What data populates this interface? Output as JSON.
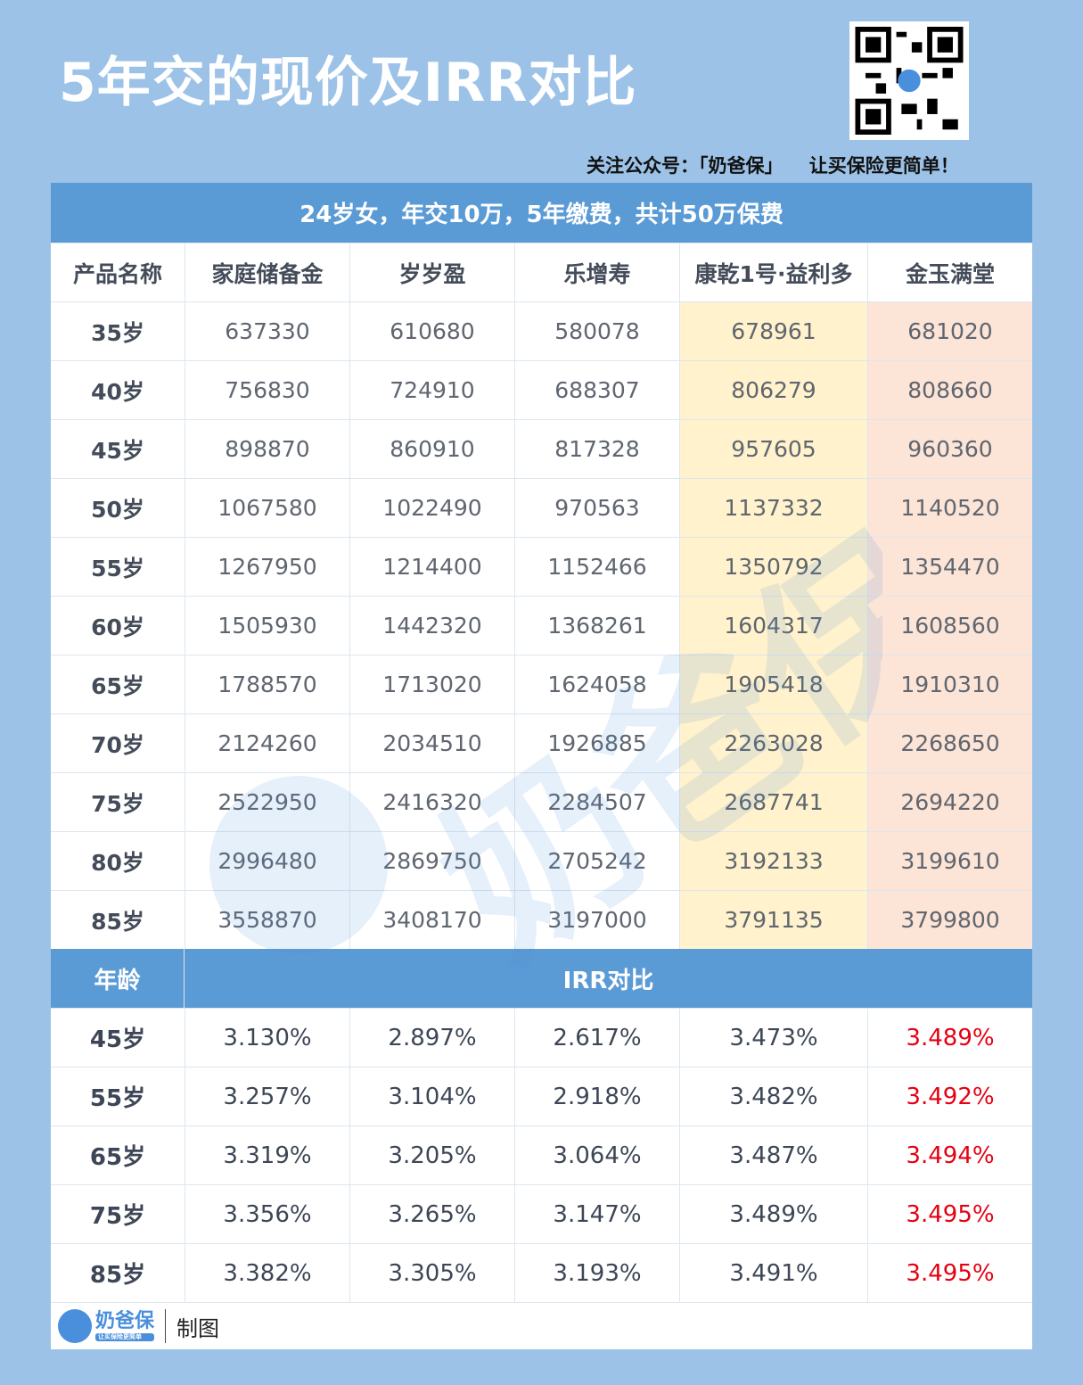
{
  "title": "5年交的现价及IRR对比",
  "follow_text": "关注公众号：「奶爸保」    让买保险更简单！",
  "banner": "24岁女，年交10万，5年缴费，共计50万保费",
  "columns": [
    "产品名称",
    "家庭储备金",
    "岁岁盈",
    "乐增寿",
    "康乾1号·益利多",
    "金玉满堂"
  ],
  "cash_rows": [
    [
      "35岁",
      "637330",
      "610680",
      "580078",
      "678961",
      "681020"
    ],
    [
      "40岁",
      "756830",
      "724910",
      "688307",
      "806279",
      "808660"
    ],
    [
      "45岁",
      "898870",
      "860910",
      "817328",
      "957605",
      "960360"
    ],
    [
      "50岁",
      "1067580",
      "1022490",
      "970563",
      "1137332",
      "1140520"
    ],
    [
      "55岁",
      "1267950",
      "1214400",
      "1152466",
      "1350792",
      "1354470"
    ],
    [
      "60岁",
      "1505930",
      "1442320",
      "1368261",
      "1604317",
      "1608560"
    ],
    [
      "65岁",
      "1788570",
      "1713020",
      "1624058",
      "1905418",
      "1910310"
    ],
    [
      "70岁",
      "2124260",
      "2034510",
      "1926885",
      "2263028",
      "2268650"
    ],
    [
      "75岁",
      "2522950",
      "2416320",
      "2284507",
      "2687741",
      "2694220"
    ],
    [
      "80岁",
      "2996480",
      "2869750",
      "2705242",
      "3192133",
      "3199610"
    ],
    [
      "85岁",
      "3558870",
      "3408170",
      "3197000",
      "3791135",
      "3799800"
    ]
  ],
  "irr_header": {
    "age": "年龄",
    "title": "IRR对比"
  },
  "irr_rows": [
    [
      "45岁",
      "3.130%",
      "2.897%",
      "2.617%",
      "3.473%",
      "3.489%"
    ],
    [
      "55岁",
      "3.257%",
      "3.104%",
      "2.918%",
      "3.482%",
      "3.492%"
    ],
    [
      "65岁",
      "3.319%",
      "3.205%",
      "3.064%",
      "3.487%",
      "3.494%"
    ],
    [
      "75岁",
      "3.356%",
      "3.265%",
      "3.147%",
      "3.489%",
      "3.495%"
    ],
    [
      "85岁",
      "3.382%",
      "3.305%",
      "3.193%",
      "3.491%",
      "3.495%"
    ]
  ],
  "footer": {
    "logo": "奶爸保",
    "logo_sub": "让买保险更简单",
    "made": "制图"
  },
  "watermark": "奶爸保",
  "colors": {
    "header": "#5b9bd5",
    "highlight_yellow": "#fff2cc",
    "highlight_peach": "#fce4d6",
    "best_irr": "#e60012"
  }
}
